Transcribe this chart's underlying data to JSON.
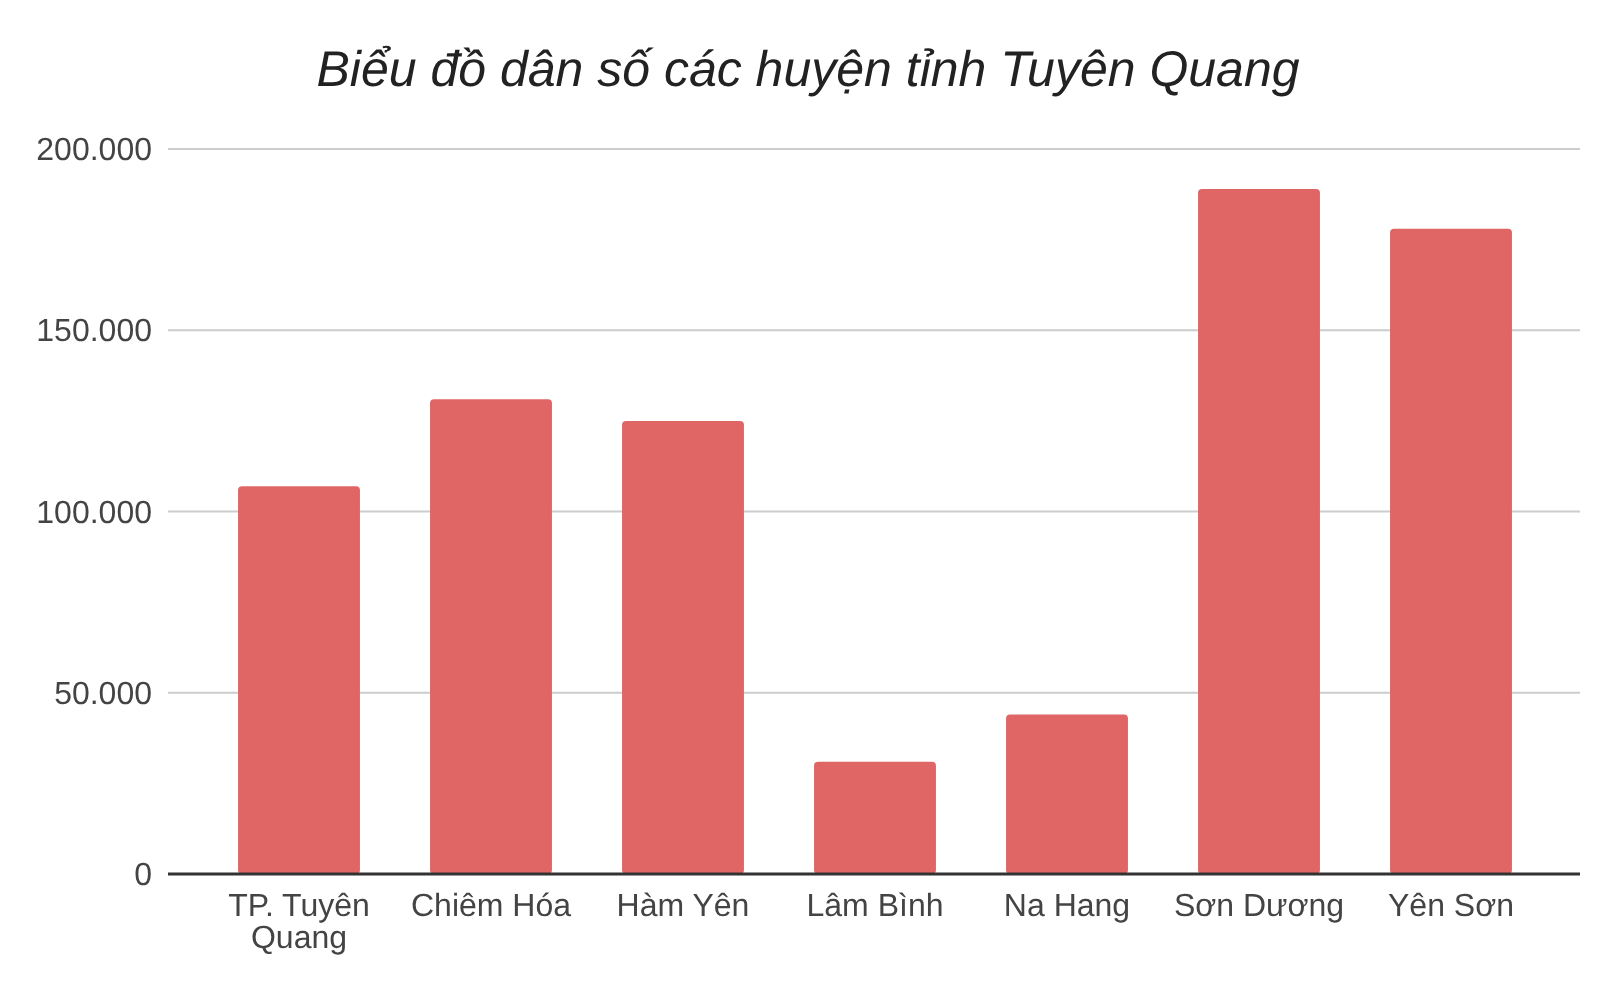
{
  "chart_data": {
    "type": "bar",
    "title": "Biểu đồ dân số các huyện tỉnh Tuyên Quang",
    "categories": [
      "TP. Tuyên Quang",
      "Chiêm Hóa",
      "Hàm Yên",
      "Lâm Bình",
      "Na Hang",
      "Sơn Dương",
      "Yên Sơn"
    ],
    "values": [
      107000,
      131000,
      125000,
      31000,
      44000,
      189000,
      178000
    ],
    "color": "#e06666",
    "ylim": [
      0,
      200000
    ],
    "yticks": [
      0,
      {
        "value": 50000,
        "label": "50.000"
      },
      {
        "value": 100000,
        "label": "100.000"
      },
      {
        "value": 150000,
        "label": "150.000"
      },
      {
        "value": 200000,
        "label": "200.000"
      }
    ],
    "grid": "y"
  }
}
